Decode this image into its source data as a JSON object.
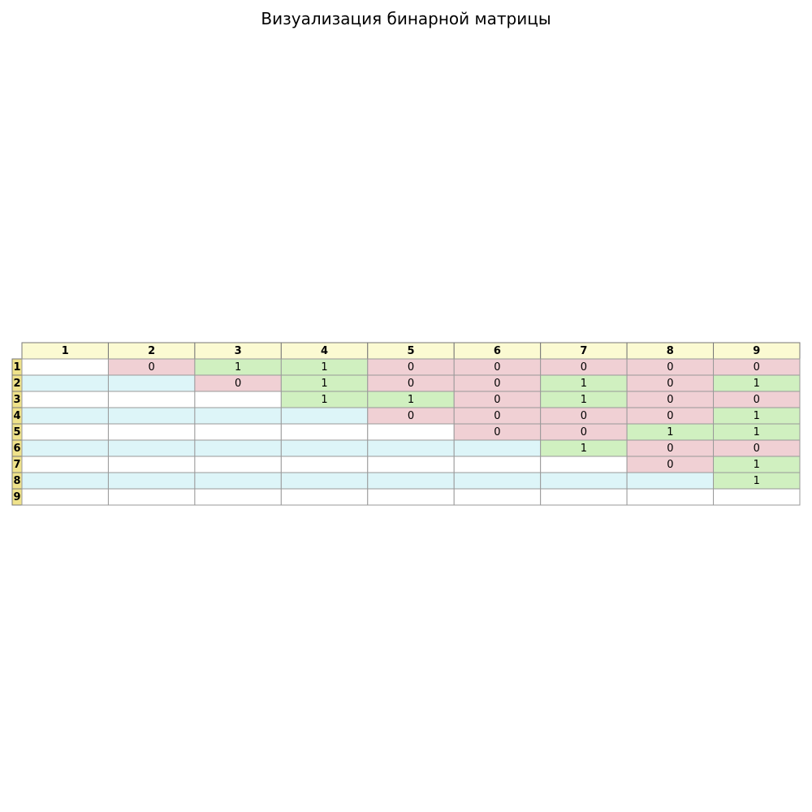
{
  "chart_data": {
    "type": "table",
    "title": "Визуализация бинарной матрицы",
    "column_labels": [
      "1",
      "2",
      "3",
      "4",
      "5",
      "6",
      "7",
      "8",
      "9"
    ],
    "row_labels": [
      "1",
      "2",
      "3",
      "4",
      "5",
      "6",
      "7",
      "8",
      "9"
    ],
    "cells": [
      [
        "",
        "0",
        "1",
        "1",
        "0",
        "0",
        "0",
        "0",
        "0"
      ],
      [
        "",
        "",
        "0",
        "1",
        "0",
        "0",
        "1",
        "0",
        "1"
      ],
      [
        "",
        "",
        "",
        "1",
        "1",
        "0",
        "1",
        "0",
        "0"
      ],
      [
        "",
        "",
        "",
        "",
        "0",
        "0",
        "0",
        "0",
        "1"
      ],
      [
        "",
        "",
        "",
        "",
        "",
        "0",
        "0",
        "1",
        "1"
      ],
      [
        "",
        "",
        "",
        "",
        "",
        "",
        "1",
        "0",
        "0"
      ],
      [
        "",
        "",
        "",
        "",
        "",
        "",
        "",
        "0",
        "1"
      ],
      [
        "",
        "",
        "",
        "",
        "",
        "",
        "",
        "",
        "1"
      ],
      [
        "",
        "",
        "",
        "",
        "",
        "",
        "",
        "",
        ""
      ]
    ],
    "colors": {
      "header_fill": "#fbfad2",
      "row_label_fill": "#efe28a",
      "one_fill": "#d0f0c0",
      "zero_fill": "#f0d0d4",
      "even_row_fill": "#ffffff",
      "odd_row_fill": "#ddf5f8",
      "grid_line": "#999999"
    }
  }
}
